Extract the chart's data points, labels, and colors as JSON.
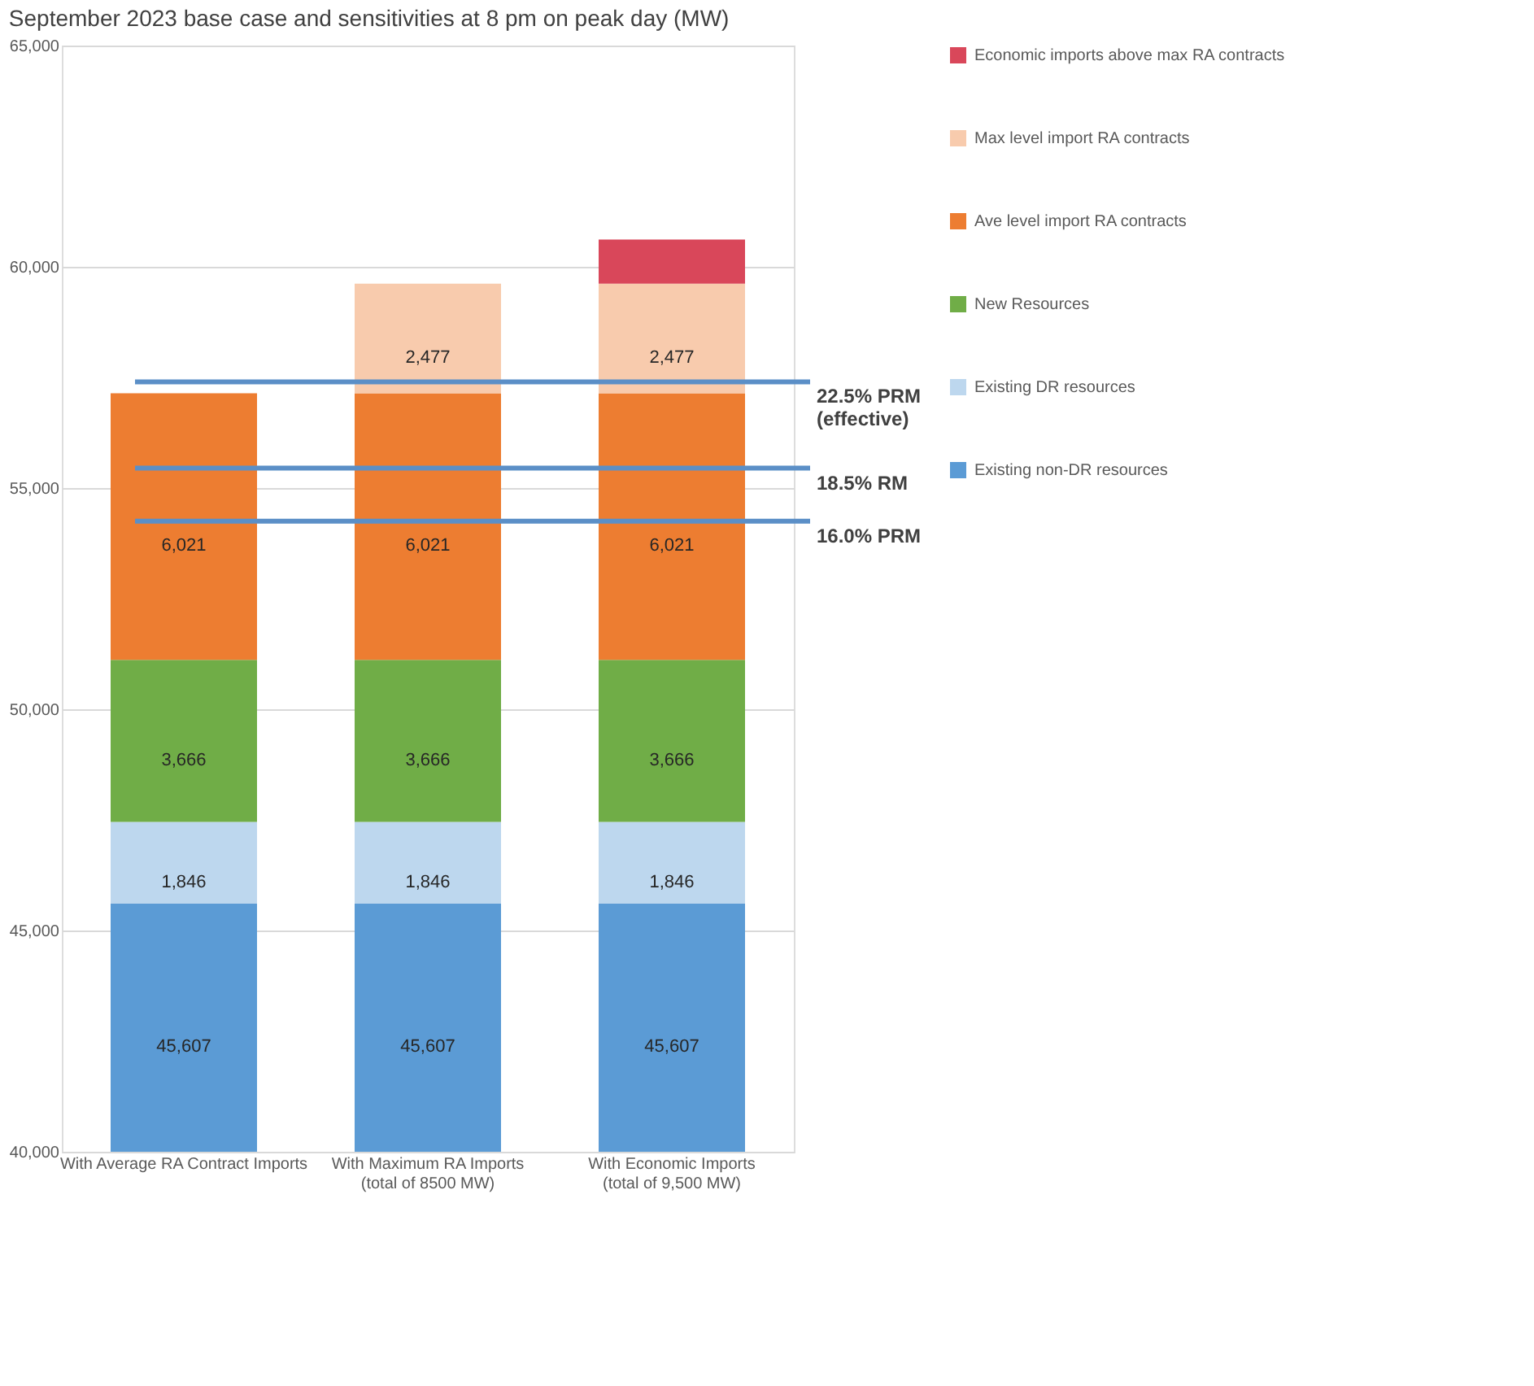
{
  "chart_data": {
    "type": "bar",
    "title": "September 2023 base case and sensitivities at 8 pm on peak day (MW)",
    "categories": [
      "With Average RA Contract Imports",
      "With Maximum RA Imports\n(total of 8500 MW)",
      "With Economic Imports\n(total of 9,500 MW)"
    ],
    "series": [
      {
        "name": "Existing non-DR resources",
        "color": "#5b9bd5",
        "base": [
          0,
          0,
          0
        ],
        "values": [
          45607,
          45607,
          45607
        ],
        "value_labels": [
          "45,607",
          "45,607",
          "45,607"
        ]
      },
      {
        "name": "Existing DR resources",
        "color": "#bdd7ee",
        "base": [
          45607,
          45607,
          45607
        ],
        "values": [
          1846,
          1846,
          1846
        ],
        "value_labels": [
          "1,846",
          "1,846",
          "1,846"
        ]
      },
      {
        "name": "New Resources",
        "color": "#70ad47",
        "base": [
          47453,
          47453,
          47453
        ],
        "values": [
          3666,
          3666,
          3666
        ],
        "value_labels": [
          "3,666",
          "3,666",
          "3,666"
        ]
      },
      {
        "name": "Ave level import RA contracts",
        "color": "#ed7d31",
        "base": [
          51119,
          51119,
          51119
        ],
        "values": [
          6021,
          6021,
          6021
        ],
        "value_labels": [
          "6,021",
          "6,021",
          "6,021"
        ]
      },
      {
        "name": "Max level import RA contracts",
        "color": "#f8cbad",
        "base": [
          null,
          57140,
          57140
        ],
        "values": [
          null,
          2477,
          2477
        ],
        "value_labels": [
          null,
          "2,477",
          "2,477"
        ]
      },
      {
        "name": "Economic imports above max RA contracts",
        "color": "#d9475a",
        "base": [
          null,
          null,
          59617
        ],
        "values": [
          null,
          null,
          1000
        ],
        "value_labels": [
          null,
          null,
          null
        ]
      }
    ],
    "ylim": [
      40000,
      65000
    ],
    "yticks": [
      {
        "value": 40000,
        "label": "40,000"
      },
      {
        "value": 45000,
        "label": "45,000"
      },
      {
        "value": 50000,
        "label": "50,000"
      },
      {
        "value": 55000,
        "label": "55,000"
      },
      {
        "value": 60000,
        "label": "60,000"
      },
      {
        "value": 65000,
        "label": "65,000"
      }
    ],
    "ref_lines": [
      {
        "axis": "y",
        "value": 57400,
        "label": "22.5% PRM\n(effective)",
        "color": "#5b8fc7"
      },
      {
        "axis": "y",
        "value": 55450,
        "label": "18.5% RM",
        "color": "#5b8fc7"
      },
      {
        "axis": "y",
        "value": 54250,
        "label": "16.0% PRM",
        "color": "#5b8fc7"
      }
    ],
    "grid": "y",
    "legend": "right"
  }
}
